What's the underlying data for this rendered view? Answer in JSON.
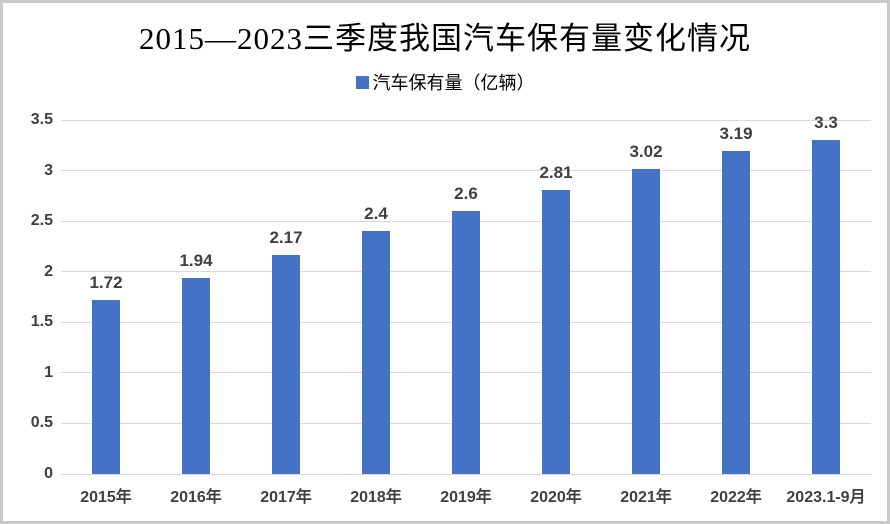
{
  "page": {
    "background": "#ffffff",
    "border_color": "#c9c9c9"
  },
  "header": {
    "title": "2015—2023三季度我国汽车保有量变化情况"
  },
  "legend": {
    "label": "汽车保有量（亿辆）",
    "marker_color": "#4472c4"
  },
  "chart_data": {
    "type": "bar",
    "title": "2015—2023三季度我国汽车保有量变化情况",
    "legend_entries": [
      "汽车保有量（亿辆）"
    ],
    "legend_position": "top",
    "categories": [
      "2015年",
      "2016年",
      "2017年",
      "2018年",
      "2019年",
      "2020年",
      "2021年",
      "2022年",
      "2023.1-9月"
    ],
    "values": [
      1.72,
      1.94,
      2.17,
      2.4,
      2.6,
      2.81,
      3.02,
      3.19,
      3.3
    ],
    "value_labels": [
      "1.72",
      "1.94",
      "2.17",
      "2.4",
      "2.6",
      "2.81",
      "3.02",
      "3.19",
      "3.3"
    ],
    "xlabel": "",
    "ylabel": "",
    "ylim": [
      0,
      3.5
    ],
    "yticks": [
      0,
      0.5,
      1,
      1.5,
      2,
      2.5,
      3,
      3.5
    ],
    "ytick_labels": [
      "0",
      "0.5",
      "1",
      "1.5",
      "2",
      "2.5",
      "3",
      "3.5"
    ],
    "grid": true,
    "bar_color": "#4472c4",
    "gridline_color": "#d9d9d9",
    "label_color": "#404040"
  }
}
